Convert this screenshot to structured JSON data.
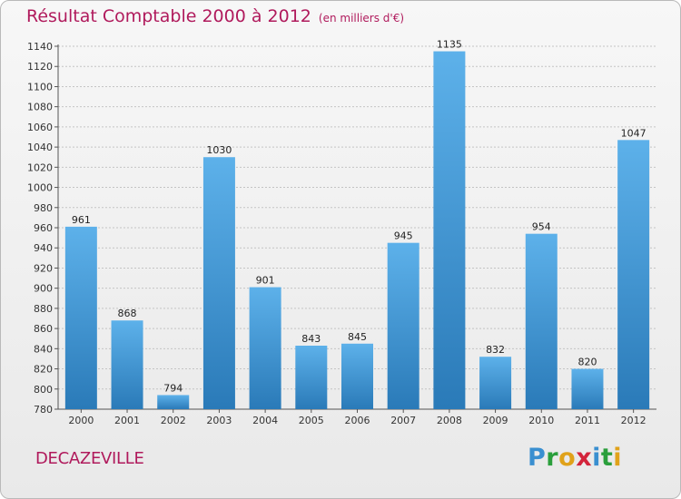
{
  "chart_data": {
    "type": "bar",
    "title": "Résultat Comptable 2000 à 2012",
    "unit_note": "(en milliers d'€)",
    "categories": [
      "2000",
      "2001",
      "2002",
      "2003",
      "2004",
      "2005",
      "2006",
      "2007",
      "2008",
      "2009",
      "2010",
      "2011",
      "2012"
    ],
    "values": [
      961,
      868,
      794,
      1030,
      901,
      843,
      845,
      945,
      1135,
      832,
      954,
      820,
      1047
    ],
    "ylim": [
      780,
      1140
    ],
    "ytick_step": 20,
    "grid": true,
    "xlabel": "",
    "ylabel": "",
    "bar_color_top": "#5db1ea",
    "bar_color_bottom": "#2a7ab8"
  },
  "footer": {
    "city": "DECAZEVILLE",
    "logo_letters": [
      "P",
      "r",
      "o",
      "x",
      "i",
      "t",
      "i"
    ],
    "logo_colors": [
      "#3a8fd0",
      "#2b9f3c",
      "#e0a21a",
      "#d3243b",
      "#3a8fd0",
      "#2b9f3c",
      "#e0a21a"
    ]
  }
}
